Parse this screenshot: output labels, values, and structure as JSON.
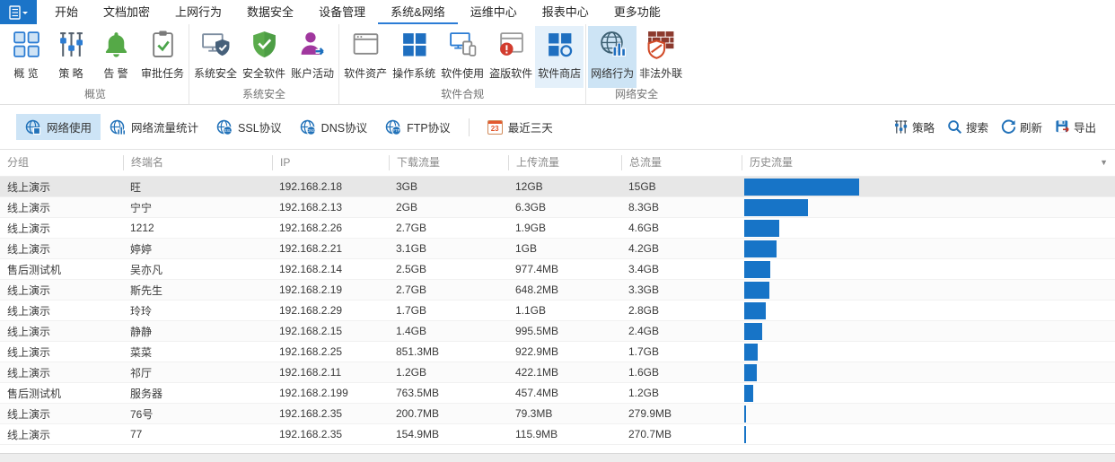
{
  "menu": {
    "tabs": [
      {
        "label": "开始"
      },
      {
        "label": "文档加密"
      },
      {
        "label": "上网行为"
      },
      {
        "label": "数据安全"
      },
      {
        "label": "设备管理"
      },
      {
        "label": "系统&网络",
        "active": true
      },
      {
        "label": "运维中心"
      },
      {
        "label": "报表中心"
      },
      {
        "label": "更多功能"
      }
    ]
  },
  "ribbon": {
    "groups": [
      {
        "label": "概览",
        "items": [
          {
            "label": "概 览",
            "icon": "overview-grid-icon"
          },
          {
            "label": "策 略",
            "icon": "policy-sliders-icon"
          },
          {
            "label": "告 警",
            "icon": "alert-bell-icon"
          },
          {
            "label": "审批任务",
            "icon": "approval-clipboard-icon"
          }
        ]
      },
      {
        "label": "系统安全",
        "items": [
          {
            "label": "系统安全",
            "icon": "system-security-icon"
          },
          {
            "label": "安全软件",
            "icon": "security-software-shield-icon"
          },
          {
            "label": "账户活动",
            "icon": "account-activity-icon"
          }
        ]
      },
      {
        "label": "软件合规",
        "items": [
          {
            "label": "软件资产",
            "icon": "software-assets-icon"
          },
          {
            "label": "操作系统",
            "icon": "operating-system-icon"
          },
          {
            "label": "软件使用",
            "icon": "software-usage-icon"
          },
          {
            "label": "盗版软件",
            "icon": "pirated-software-icon"
          },
          {
            "label": "软件商店",
            "icon": "software-store-icon",
            "highlighted": true
          }
        ]
      },
      {
        "label": "网络安全",
        "items": [
          {
            "label": "网络行为",
            "icon": "network-behavior-icon",
            "selected": true
          },
          {
            "label": "非法外联",
            "icon": "illegal-connection-icon"
          }
        ]
      }
    ]
  },
  "toolbar": {
    "left": [
      {
        "label": "网络使用",
        "icon": "globe-usage-icon",
        "selected": true
      },
      {
        "label": "网络流量统计",
        "icon": "globe-stats-icon"
      },
      {
        "label": "SSL协议",
        "icon": "globe-ssl-icon",
        "icon_badge": "SSL"
      },
      {
        "label": "DNS协议",
        "icon": "globe-dns-icon",
        "icon_badge": "DNS"
      },
      {
        "label": "FTP协议",
        "icon": "globe-ftp-icon",
        "icon_badge": "FTP"
      }
    ],
    "date_filter": {
      "label": "最近三天",
      "calendar_day": "23",
      "icon": "calendar-icon"
    },
    "right": [
      {
        "label": "策略",
        "icon": "policy-sliders-icon"
      },
      {
        "label": "搜索",
        "icon": "search-icon"
      },
      {
        "label": "刷新",
        "icon": "refresh-icon"
      },
      {
        "label": "导出",
        "icon": "export-icon"
      }
    ]
  },
  "table": {
    "columns": [
      "分组",
      "终端名",
      "IP",
      "下载流量",
      "上传流量",
      "总流量",
      "历史流量"
    ],
    "history_bar_color": "#1774c7",
    "rows": [
      {
        "group": "线上演示",
        "name": "旺",
        "ip": "192.168.2.18",
        "download": "3GB",
        "upload": "12GB",
        "total": "15GB",
        "selected": true
      },
      {
        "group": "线上演示",
        "name": "宁宁",
        "ip": "192.168.2.13",
        "download": "2GB",
        "upload": "6.3GB",
        "total": "8.3GB"
      },
      {
        "group": "线上演示",
        "name": "1212",
        "ip": "192.168.2.26",
        "download": "2.7GB",
        "upload": "1.9GB",
        "total": "4.6GB"
      },
      {
        "group": "线上演示",
        "name": "婷婷",
        "ip": "192.168.2.21",
        "download": "3.1GB",
        "upload": "1GB",
        "total": "4.2GB"
      },
      {
        "group": "售后测试机",
        "name": "吴亦凡",
        "ip": "192.168.2.14",
        "download": "2.5GB",
        "upload": "977.4MB",
        "total": "3.4GB"
      },
      {
        "group": "线上演示",
        "name": "斯先生",
        "ip": "192.168.2.19",
        "download": "2.7GB",
        "upload": "648.2MB",
        "total": "3.3GB"
      },
      {
        "group": "线上演示",
        "name": "玲玲",
        "ip": "192.168.2.29",
        "download": "1.7GB",
        "upload": "1.1GB",
        "total": "2.8GB"
      },
      {
        "group": "线上演示",
        "name": "静静",
        "ip": "192.168.2.15",
        "download": "1.4GB",
        "upload": "995.5MB",
        "total": "2.4GB"
      },
      {
        "group": "线上演示",
        "name": "菜菜",
        "ip": "192.168.2.25",
        "download": "851.3MB",
        "upload": "922.9MB",
        "total": "1.7GB"
      },
      {
        "group": "线上演示",
        "name": "祁厅",
        "ip": "192.168.2.11",
        "download": "1.2GB",
        "upload": "422.1MB",
        "total": "1.6GB"
      },
      {
        "group": "售后测试机",
        "name": "服务器",
        "ip": "192.168.2.199",
        "download": "763.5MB",
        "upload": "457.4MB",
        "total": "1.2GB"
      },
      {
        "group": "线上演示",
        "name": "76号",
        "ip": "192.168.2.35",
        "download": "200.7MB",
        "upload": "79.3MB",
        "total": "279.9MB"
      },
      {
        "group": "线上演示",
        "name": "77",
        "ip": "192.168.2.35",
        "download": "154.9MB",
        "upload": "115.9MB",
        "total": "270.7MB"
      }
    ]
  }
}
